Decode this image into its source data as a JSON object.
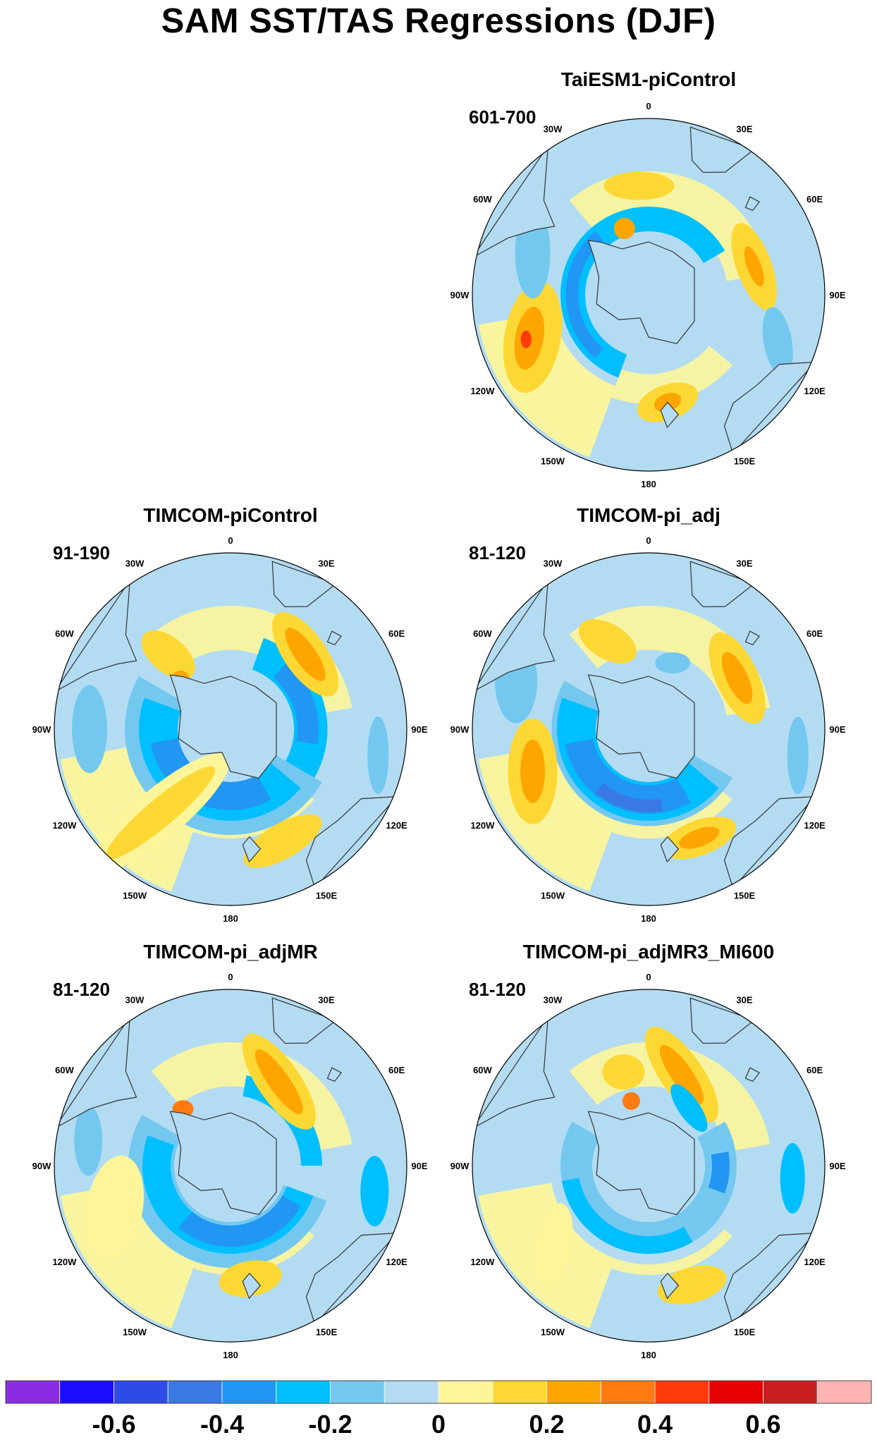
{
  "title": "SAM SST/TAS Regressions (DJF)",
  "longitude_labels": [
    "0",
    "30E",
    "60E",
    "90E",
    "120E",
    "150E",
    "180",
    "150W",
    "120W",
    "90W",
    "60W",
    "30W"
  ],
  "panels": [
    {
      "id": "taiesm1",
      "title": "TaiESM1-piControl",
      "period": "601-700"
    },
    {
      "id": "timcom-picontrol",
      "title": "TIMCOM-piControl",
      "period": "91-190"
    },
    {
      "id": "timcom-pi-adj",
      "title": "TIMCOM-pi_adj",
      "period": "81-120"
    },
    {
      "id": "timcom-pi-adjmr",
      "title": "TIMCOM-pi_adjMR",
      "period": "81-120"
    },
    {
      "id": "timcom-pi-adjmr3-mi600",
      "title": "TIMCOM-pi_adjMR3_MI600",
      "period": "81-120"
    }
  ],
  "colorbar": {
    "colors": [
      "#8a2be2",
      "#1a0dff",
      "#2d4be6",
      "#3a78e6",
      "#2196f3",
      "#00bfff",
      "#74c8f0",
      "#b3dcf2",
      "#fdf59a",
      "#fdd835",
      "#ffa500",
      "#ff7a10",
      "#ff3b0a",
      "#e60000",
      "#c81e1e",
      "#ffb3b3"
    ],
    "tick_labels": [
      "-0.6",
      "-0.4",
      "-0.2",
      "0",
      "0.2",
      "0.4",
      "0.6"
    ]
  },
  "colors": {
    "land": "#b3dcf2",
    "antarctica": "#b3dcf2",
    "coast": "#333333"
  }
}
